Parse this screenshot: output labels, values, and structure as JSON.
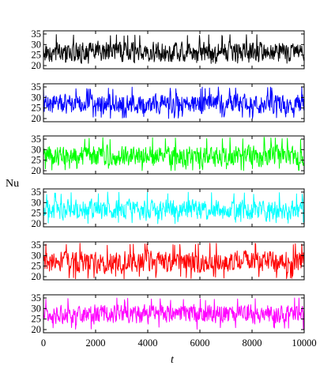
{
  "chart_data": {
    "type": "line",
    "ylabel": "Nu",
    "xlabel": "t",
    "xlim": [
      0,
      10000
    ],
    "ylim": [
      20,
      35
    ],
    "x_ticks": [
      0,
      2000,
      4000,
      6000,
      8000,
      10000
    ],
    "y_ticks": [
      20,
      25,
      30,
      35
    ],
    "grid": false,
    "legend": "none",
    "series": [
      {
        "color": "#000000",
        "min": 21,
        "max": 35,
        "mean": 26.5,
        "spread": 3.2
      },
      {
        "color": "#0000ff",
        "min": 20,
        "max": 35,
        "mean": 26.8,
        "spread": 3.2
      },
      {
        "color": "#00ff00",
        "min": 20,
        "max": 36,
        "mean": 27.0,
        "spread": 3.3
      },
      {
        "color": "#00ffff",
        "min": 20,
        "max": 35,
        "mean": 26.5,
        "spread": 3.3
      },
      {
        "color": "#ff0000",
        "min": 19,
        "max": 36,
        "mean": 27.0,
        "spread": 3.5
      },
      {
        "color": "#ff00ff",
        "min": 20,
        "max": 35,
        "mean": 27.3,
        "spread": 3.0
      }
    ]
  }
}
